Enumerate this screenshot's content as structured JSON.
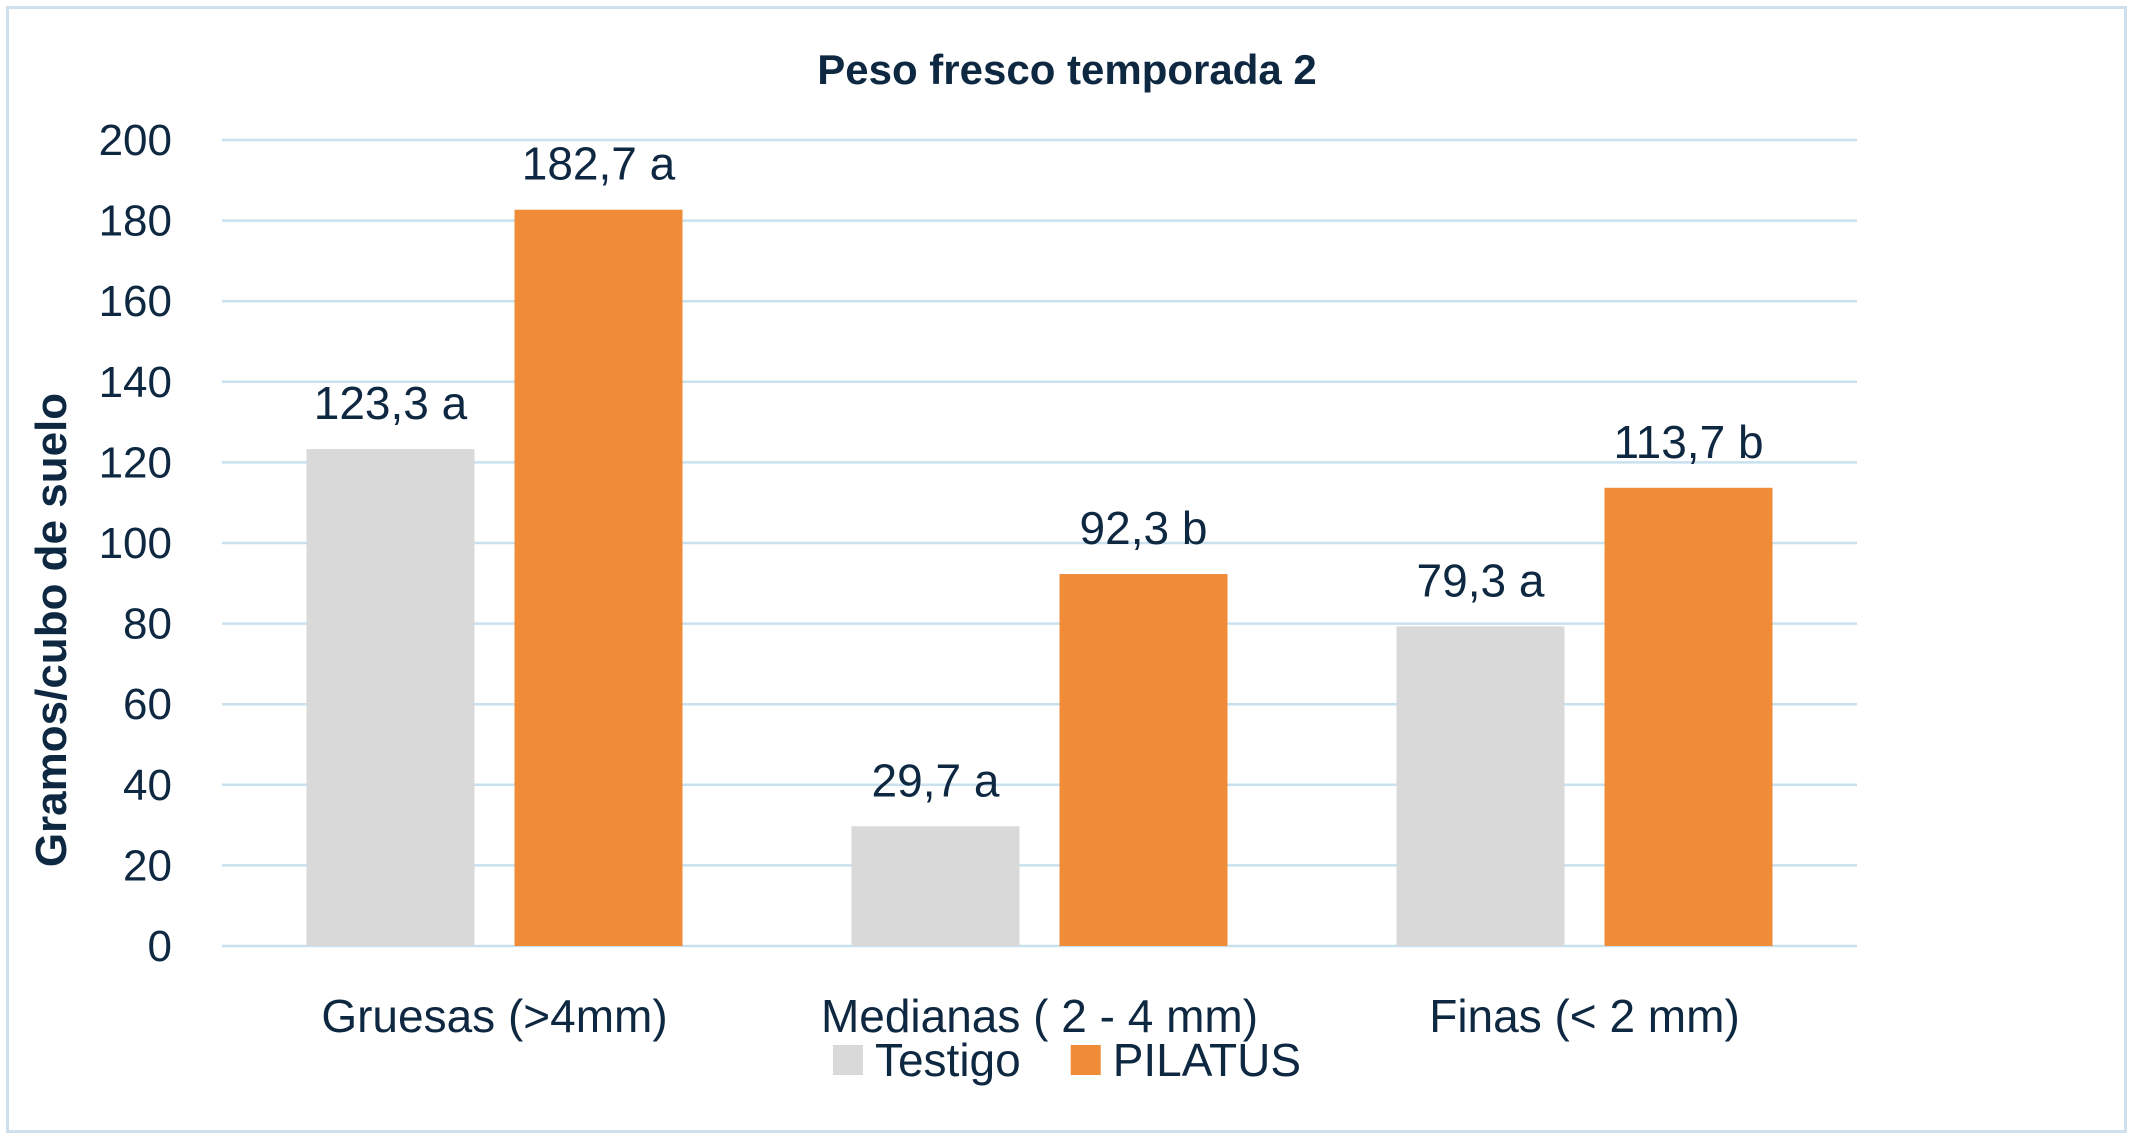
{
  "chart_data": {
    "type": "bar",
    "title": "Peso fresco temporada 2",
    "xlabel": "",
    "ylabel": "Gramos/cubo de suelo",
    "ylim": [
      0,
      200
    ],
    "yticks": [
      0,
      20,
      40,
      60,
      80,
      100,
      120,
      140,
      160,
      180,
      200
    ],
    "grid": true,
    "legend_position": "bottom",
    "categories": [
      "Gruesas (>4mm)",
      "Medianas ( 2 - 4 mm)",
      "Finas (< 2 mm)"
    ],
    "series": [
      {
        "name": "Testigo",
        "color": "#d9d9d9",
        "values": [
          123.3,
          29.7,
          79.3
        ],
        "labels": [
          "123,3 a",
          "29,7 a",
          "79,3 a"
        ]
      },
      {
        "name": "PILATUS",
        "color": "#f08c38",
        "values": [
          182.7,
          92.3,
          113.7
        ],
        "labels": [
          "182,7 a",
          "92,3 b",
          "113,7 b"
        ]
      }
    ],
    "gridline_color": "#c9e0ef",
    "text_color": "#0e2841"
  }
}
